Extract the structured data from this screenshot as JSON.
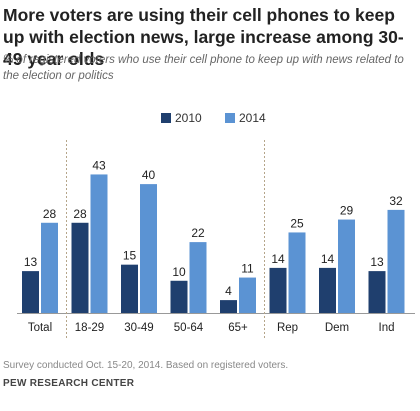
{
  "colors": {
    "s2010": "#1f3f6e",
    "s2014": "#5b93d3",
    "axis": "#999999",
    "divider": "#b5a58a"
  },
  "chart_data": {
    "type": "bar",
    "title": "More voters are using their cell phones to keep up with election news, large increase among 30-49 year olds",
    "subtitle": "% of registered voters who use their cell phone to keep up with news related to the election or politics",
    "categories": [
      "Total",
      "18-29",
      "30-49",
      "50-64",
      "65+",
      "Rep",
      "Dem",
      "Ind"
    ],
    "series": [
      {
        "name": "2010",
        "values": [
          13,
          28,
          15,
          10,
          4,
          14,
          14,
          13
        ]
      },
      {
        "name": "2014",
        "values": [
          28,
          43,
          40,
          22,
          11,
          25,
          29,
          32
        ]
      }
    ],
    "ylim": [
      0,
      45
    ],
    "legend": "top-center",
    "grid": false,
    "group_dividers_after": [
      "Total",
      "65+"
    ]
  },
  "footer": {
    "note": "Survey conducted Oct. 15-20, 2014. Based on registered voters.",
    "source": "PEW RESEARCH CENTER"
  }
}
